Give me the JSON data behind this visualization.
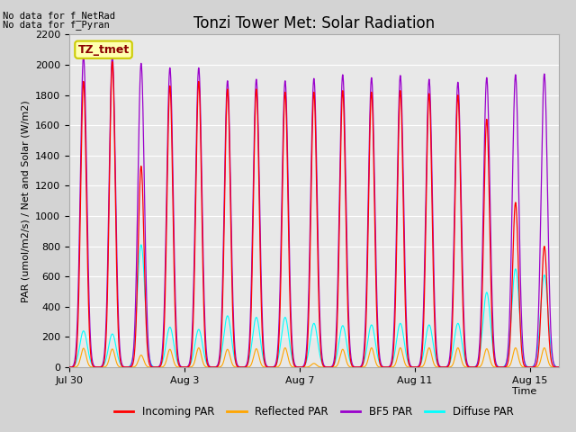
{
  "title": "Tonzi Tower Met: Solar Radiation",
  "ylabel": "PAR (umol/m2/s) / Net and Solar (W/m2)",
  "xlabel": "Time",
  "text_no_data_1": "No data for f_NetRad",
  "text_no_data_2": "No data for f_Pyran",
  "legend_label_box": "TZ_tmet",
  "ylim": [
    0,
    2200
  ],
  "yticks": [
    0,
    200,
    400,
    600,
    800,
    1000,
    1200,
    1400,
    1600,
    1800,
    2000,
    2200
  ],
  "xtick_labels": [
    "Jul 30",
    "Aug 3",
    "Aug 7",
    "Aug 11",
    "Aug 15"
  ],
  "xtick_positions": [
    0,
    4,
    8,
    12,
    16
  ],
  "num_days": 17,
  "colors": {
    "incoming_par": "#ff0000",
    "reflected_par": "#ffa500",
    "bf5_par": "#9900cc",
    "diffuse_par": "#00ffff",
    "fig_bg": "#d3d3d3",
    "plot_bg": "#e8e8e8"
  },
  "legend_labels": [
    "Incoming PAR",
    "Reflected PAR",
    "BF5 PAR",
    "Diffuse PAR"
  ],
  "title_fontsize": 12,
  "axis_fontsize": 8,
  "tick_fontsize": 8,
  "day_params": [
    [
      0,
      1890,
      2060,
      125,
      240
    ],
    [
      1,
      2020,
      2060,
      120,
      220
    ],
    [
      2,
      1330,
      2010,
      80,
      810
    ],
    [
      3,
      1860,
      1980,
      118,
      265
    ],
    [
      4,
      1890,
      1980,
      128,
      250
    ],
    [
      5,
      1840,
      1895,
      118,
      340
    ],
    [
      6,
      1840,
      1905,
      122,
      330
    ],
    [
      7,
      1820,
      1895,
      128,
      330
    ],
    [
      8,
      1820,
      1910,
      25,
      290
    ],
    [
      9,
      1830,
      1935,
      118,
      275
    ],
    [
      10,
      1820,
      1915,
      128,
      280
    ],
    [
      11,
      1830,
      1930,
      128,
      290
    ],
    [
      12,
      1810,
      1905,
      128,
      280
    ],
    [
      13,
      1800,
      1885,
      128,
      290
    ],
    [
      14,
      1640,
      1915,
      122,
      495
    ],
    [
      15,
      1090,
      1935,
      128,
      650
    ],
    [
      16,
      800,
      1940,
      128,
      610
    ]
  ]
}
